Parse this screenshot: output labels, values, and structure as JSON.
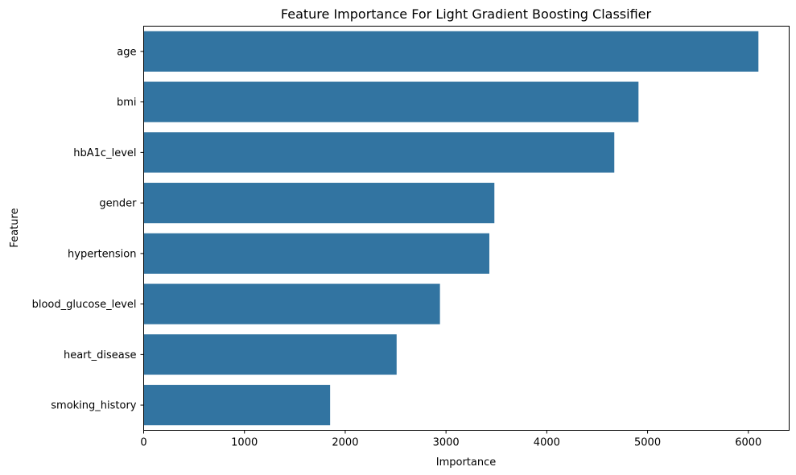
{
  "chart_data": {
    "type": "bar",
    "orientation": "horizontal",
    "title": "Feature Importance For Light Gradient Boosting Classifier",
    "xlabel": "Importance",
    "ylabel": "Feature",
    "categories": [
      "age",
      "bmi",
      "hbA1c_level",
      "gender",
      "hypertension",
      "blood_glucose_level",
      "heart_disease",
      "smoking_history"
    ],
    "values": [
      6100,
      4910,
      4670,
      3480,
      3430,
      2940,
      2510,
      1850
    ],
    "xlim": [
      0,
      6405
    ],
    "xticks": [
      "0",
      "1000",
      "2000",
      "3000",
      "4000",
      "5000",
      "6000"
    ],
    "bar_color": "#3274a1",
    "grid": false
  }
}
